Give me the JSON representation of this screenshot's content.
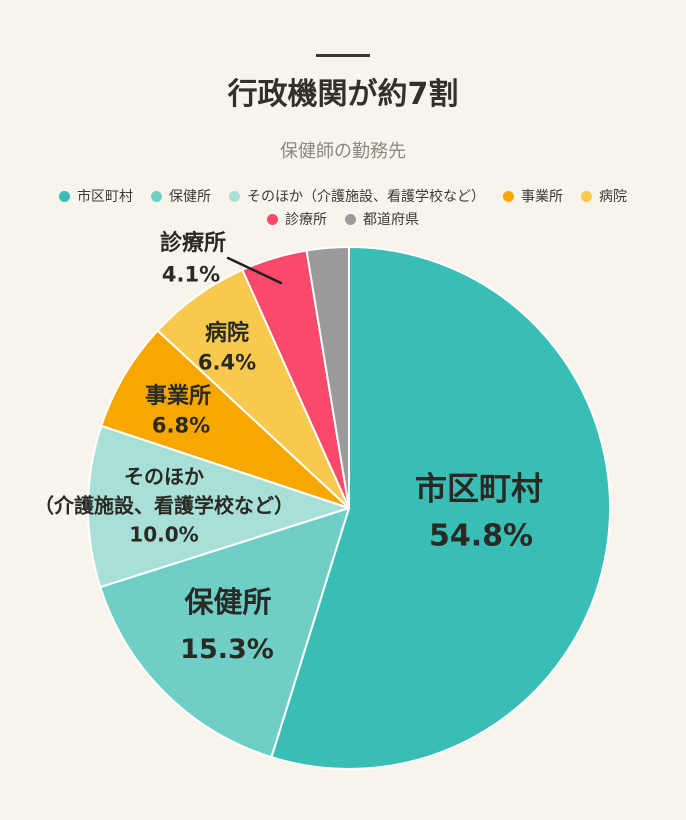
{
  "page": {
    "background": "#F8F4EB",
    "title": "行政機関が約7割",
    "subtitle": "保健師の勤務先"
  },
  "legend": {
    "rows": [
      [
        {
          "label": "市区町村",
          "color": "#39BEB5"
        },
        {
          "label": "保健所",
          "color": "#6FCFC7"
        },
        {
          "label": "そのほか（介護施設、看護学校など）",
          "color": "#A8E0D8"
        },
        {
          "label": "事業所",
          "color": "#F6A702"
        },
        {
          "label": "病院",
          "color": "#F7C94E"
        }
      ],
      [
        {
          "label": "診療所",
          "color": "#FA4A6C"
        },
        {
          "label": "都道府県",
          "color": "#9A9A9A"
        }
      ]
    ]
  },
  "chart_data": {
    "type": "pie",
    "title": "保健師の勤務先",
    "headline": "行政機関が約7割",
    "start_angle_deg": 0,
    "direction": "clockwise",
    "legend_position": "top",
    "slices": [
      {
        "label": "市区町村",
        "value": 54.8,
        "pct_label": "54.8%",
        "color": "#39BEB5"
      },
      {
        "label": "保健所",
        "value": 15.3,
        "pct_label": "15.3%",
        "color": "#6FCFC7"
      },
      {
        "label": "そのほか（介護施設、看護学校など）",
        "value": 10.0,
        "pct_label": "10.0%",
        "color": "#A8E0D8"
      },
      {
        "label": "事業所",
        "value": 6.8,
        "pct_label": "6.8%",
        "color": "#F6A702"
      },
      {
        "label": "病院",
        "value": 6.4,
        "pct_label": "6.4%",
        "color": "#F7C94E"
      },
      {
        "label": "診療所",
        "value": 4.1,
        "pct_label": "4.1%",
        "color": "#FA4A6C"
      },
      {
        "label": "都道府県",
        "value": 2.6,
        "pct_label": "",
        "color": "#9A9A9A"
      }
    ],
    "onchart": {
      "shikuchoson": {
        "name": "市区町村",
        "pct": "54.8%"
      },
      "hokenjo": {
        "name": "保健所",
        "pct": "15.3%"
      },
      "sonohoka": {
        "line1": "そのほか",
        "line2": "（介護施設、看護学校など）",
        "pct": "10.0%"
      },
      "jigyosho": {
        "name": "事業所",
        "pct": "6.8%"
      },
      "byoin": {
        "name": "病院",
        "pct": "6.4%"
      },
      "shinryojo": {
        "name": "診療所",
        "pct": "4.1%"
      }
    }
  }
}
